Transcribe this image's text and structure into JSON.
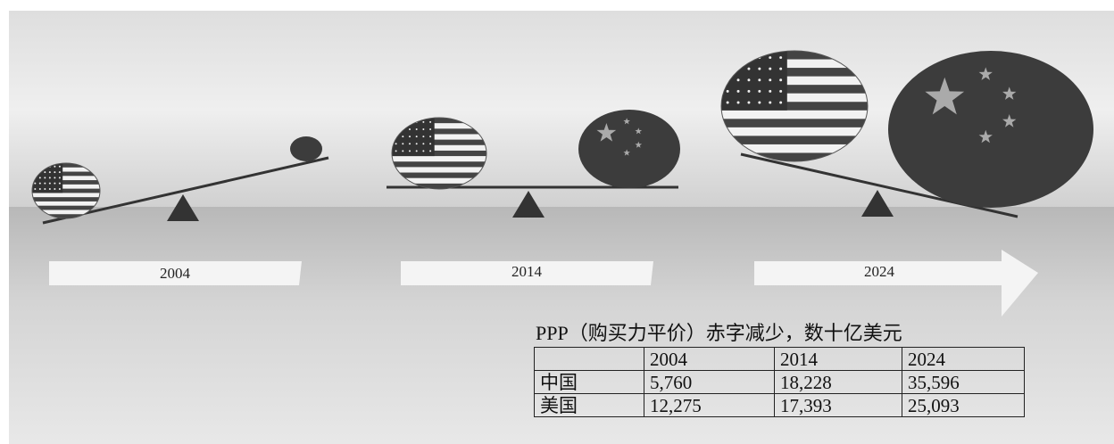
{
  "timeline": {
    "labels": [
      "2004",
      "2014",
      "2024"
    ]
  },
  "table": {
    "title": "PPP（购买力平价）赤字减少，数十亿美元",
    "header": [
      "",
      "2004",
      "2014",
      "2024"
    ],
    "rows": [
      [
        "中国",
        "5,760",
        "18,228",
        "35,596"
      ],
      [
        "美国",
        "12,275",
        "17,393",
        "25,093"
      ]
    ]
  }
}
